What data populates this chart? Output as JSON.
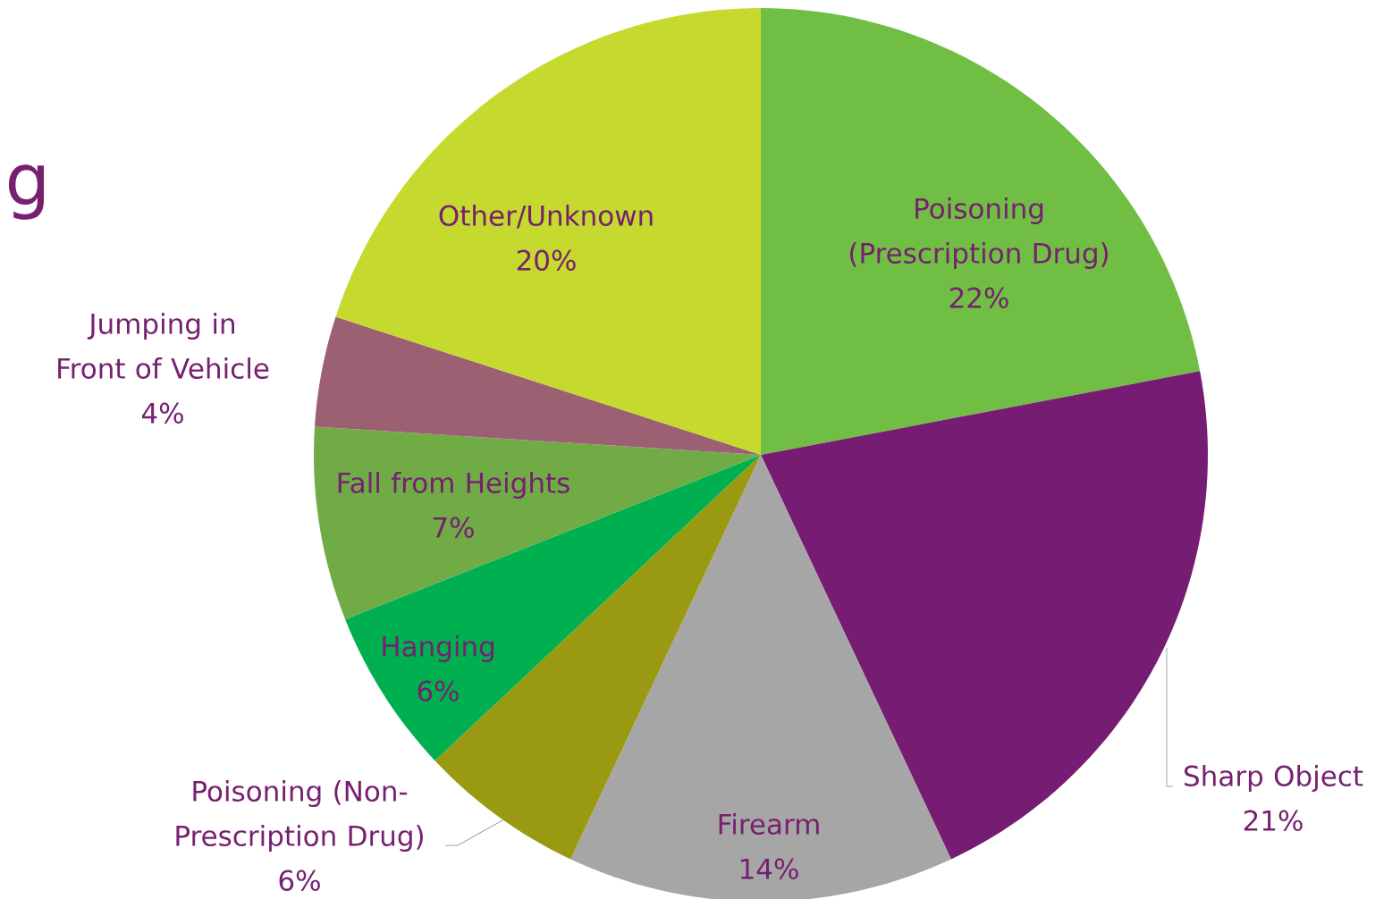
{
  "chart_data": {
    "type": "pie",
    "title": "g",
    "categories": [
      "Poisoning (Prescription Drug)",
      "Sharp Object",
      "Firearm",
      "Poisoning (Non-Prescription Drug)",
      "Hanging",
      "Fall from Heights",
      "Jumping in Front of Vehicle",
      "Other/Unknown"
    ],
    "values": [
      22,
      21,
      14,
      6,
      6,
      7,
      4,
      20
    ],
    "value_labels": [
      "22%",
      "21%",
      "14%",
      "6%",
      "6%",
      "7%",
      "4%",
      "20%"
    ],
    "colors": [
      "#70bf44",
      "#761c73",
      "#a6a6a6",
      "#9a9a12",
      "#00b050",
      "#70ab46",
      "#9b6173",
      "#c5d92e"
    ]
  }
}
